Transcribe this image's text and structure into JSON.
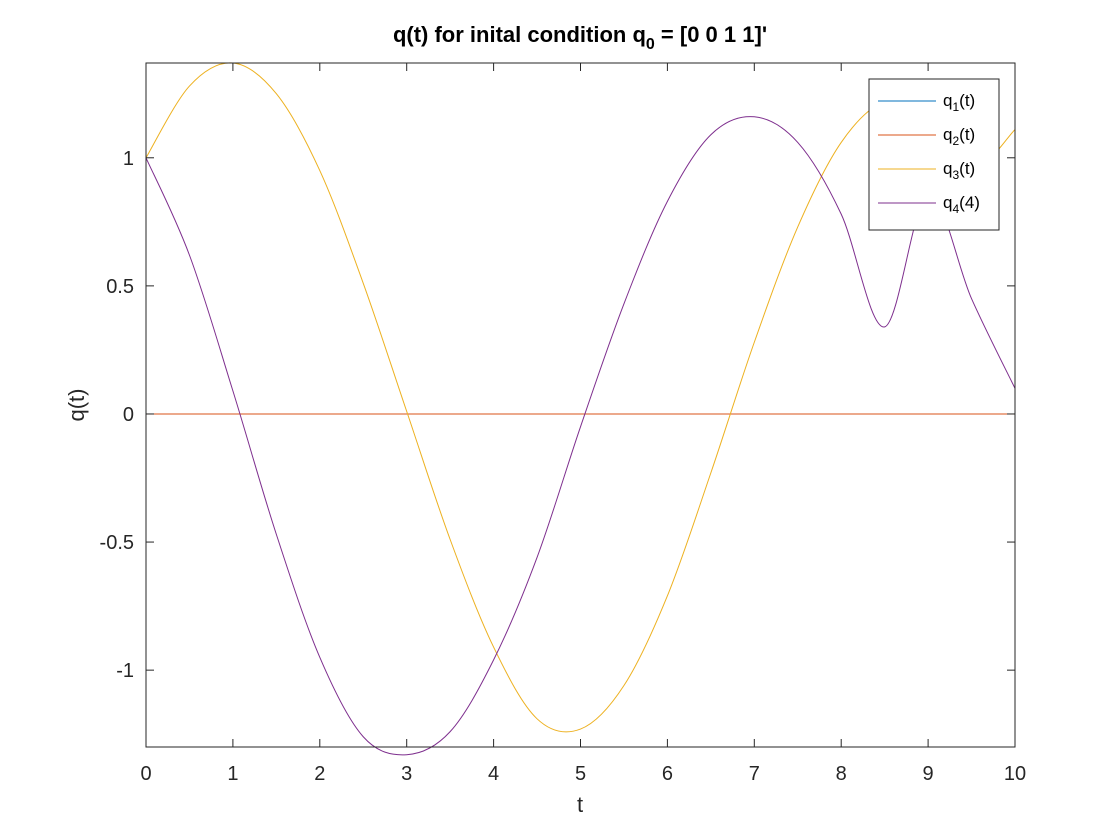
{
  "chart_data": {
    "type": "line",
    "title": {
      "main": "q(t) for inital condition q",
      "subscript": "0",
      "rest": " = [0 0 1 1]'"
    },
    "xlabel": "t",
    "ylabel": "q(t)",
    "xlim": [
      0,
      10
    ],
    "ylim": [
      -1.3,
      1.37
    ],
    "xticks": [
      0,
      1,
      2,
      3,
      4,
      5,
      6,
      7,
      8,
      9,
      10
    ],
    "xtick_labels": [
      "0",
      "1",
      "2",
      "3",
      "4",
      "5",
      "6",
      "7",
      "8",
      "9",
      "10"
    ],
    "yticks": [
      -1,
      -0.5,
      0,
      0.5,
      1
    ],
    "ytick_labels": [
      "-1",
      "-0.5",
      "0",
      "0.5",
      "1"
    ],
    "grid": false,
    "legend_position": "top-right",
    "x": [
      0,
      0.5,
      1,
      1.5,
      2,
      2.5,
      3,
      3.5,
      4,
      4.5,
      5,
      5.5,
      6,
      6.5,
      7,
      7.5,
      8,
      8.5,
      9,
      9.5,
      10
    ],
    "series": [
      {
        "name": "q",
        "name_sub": "1",
        "name_tail": "(t)",
        "color": "#0072BD",
        "values": [
          0,
          0,
          0,
          0,
          0,
          0,
          0,
          0,
          0,
          0,
          0,
          0,
          0,
          0,
          0,
          0,
          0,
          0,
          0,
          0,
          0
        ]
      },
      {
        "name": "q",
        "name_sub": "2",
        "name_tail": "(t)",
        "color": "#D95319",
        "values": [
          0,
          0,
          0,
          0,
          0,
          0,
          0,
          0,
          0,
          0,
          0,
          0,
          0,
          0,
          0,
          0,
          0,
          0,
          0,
          0,
          0
        ]
      },
      {
        "name": "q",
        "name_sub": "3",
        "name_tail": "(t)",
        "color": "#EDB120",
        "values": [
          1.0,
          1.28,
          1.37,
          1.25,
          0.95,
          0.51,
          0.01,
          -0.49,
          -0.91,
          -1.19,
          -1.23,
          -1.06,
          -0.71,
          -0.23,
          0.28,
          0.73,
          1.06,
          1.22,
          1.19,
          0.96,
          1.11
        ]
      },
      {
        "name": "q",
        "name_sub": "4",
        "name_tail": "(4)",
        "color": "#7E2F8E",
        "values": [
          1.0,
          0.62,
          0.09,
          -0.47,
          -0.95,
          -1.26,
          -1.33,
          -1.24,
          -0.96,
          -0.56,
          -0.05,
          0.43,
          0.83,
          1.09,
          1.16,
          1.06,
          0.78,
          0.34,
          0.86,
          0.45,
          0.1
        ]
      }
    ]
  }
}
